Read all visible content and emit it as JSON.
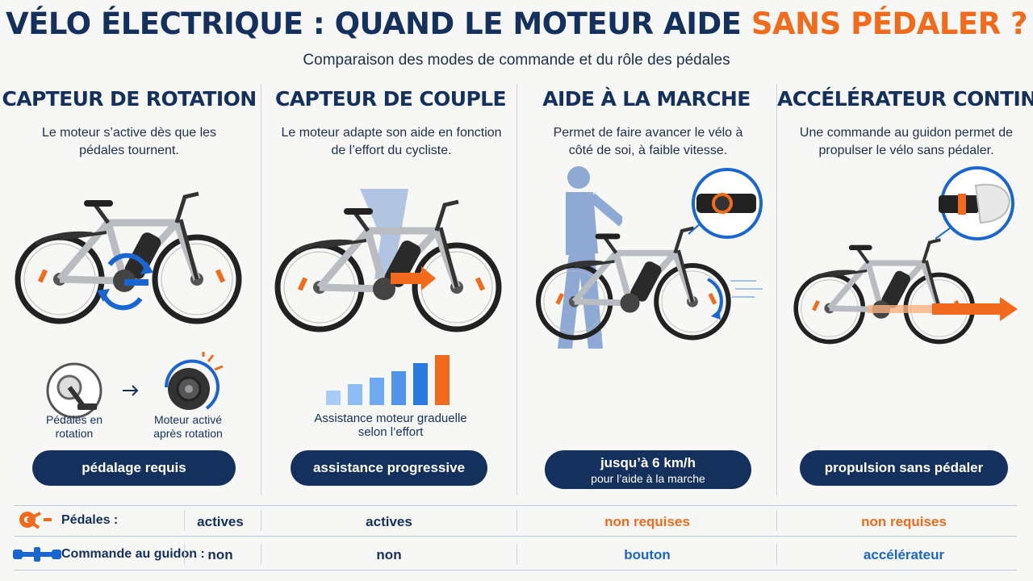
{
  "header": {
    "title_main": "VÉLO ÉLECTRIQUE : QUAND LE MOTEUR AIDE ",
    "title_accent": "SANS PÉDALER ?",
    "subtitle": "Comparaison des modes de commande et du rôle des pédales"
  },
  "columns": [
    {
      "title": "CAPTEUR DE ROTATION",
      "desc": "Le moteur s’active dès que les pédales tournent.",
      "badge": "pédalage requis",
      "label_left": "Pédales en rotation",
      "label_right": "Moteur activé après rotation"
    },
    {
      "title": "CAPTEUR DE COUPLE",
      "desc": "Le moteur adapte son aide en fonction de l’effort du cycliste.",
      "badge": "assistance progressive",
      "levels_caption": "Assistance moteur graduelle selon l’effort"
    },
    {
      "title": "AIDE À LA MARCHE",
      "desc": "Permet de faire avancer le vélo à côté de soi, à faible vitesse.",
      "badge": "jusqu’à 6 km/h",
      "badge_sub": "pour l’aide à la marche"
    },
    {
      "title": "ACCÉLÉRATEUR CONTINU",
      "desc": "Une commande au guidon permet de propulser le vélo sans pédaler.",
      "badge": "propulsion sans pédaler"
    }
  ],
  "table": {
    "row1_label": "Pédales :",
    "row1_values": [
      "actives",
      "actives",
      "non requises",
      "non requises"
    ],
    "row2_label": "Commande au guidon :",
    "row2_values": [
      "non",
      "non",
      "bouton",
      "accélérateur"
    ]
  },
  "colors": {
    "navy": "#14305c",
    "orange": "#f26a1b",
    "blue": "#1a66d0",
    "light_blue": "#4f9bf0"
  },
  "icons": [
    "pedal-crank-icon",
    "motor-icon",
    "arrow-right-icon",
    "walking-person-icon",
    "handlebar-button-icon",
    "throttle-icon",
    "handlebar-icon"
  ]
}
